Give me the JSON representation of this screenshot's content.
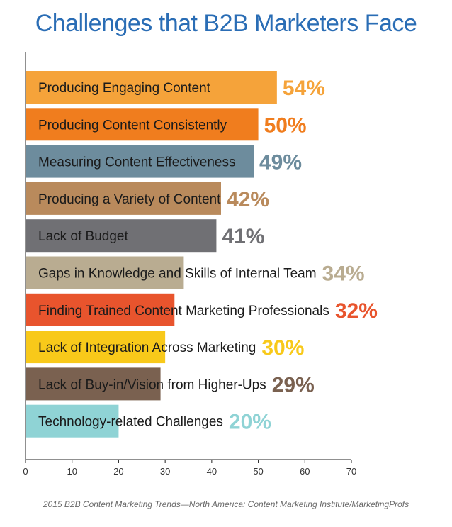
{
  "chart_data": {
    "type": "bar",
    "orientation": "horizontal",
    "title": "Challenges that B2B Marketers Face",
    "categories": [
      "Producing Engaging Content",
      "Producing Content Consistently",
      "Measuring Content Effectiveness",
      "Producing a Variety of Content",
      "Lack of Budget",
      "Gaps in Knowledge and Skills of Internal Team",
      "Finding Trained Content Marketing Professionals",
      "Lack of Integration Across Marketing",
      "Lack of Buy-in/Vision from Higher-Ups",
      "Technology-related Challenges"
    ],
    "values": [
      54,
      50,
      49,
      42,
      41,
      34,
      32,
      30,
      29,
      20
    ],
    "value_labels": [
      "54%",
      "50%",
      "49%",
      "42%",
      "41%",
      "34%",
      "32%",
      "30%",
      "29%",
      "20%"
    ],
    "colors": [
      "#f5a33a",
      "#f07d1e",
      "#6d8c9d",
      "#b98a5c",
      "#707074",
      "#b9ac91",
      "#e8542d",
      "#f8c91a",
      "#7a6150",
      "#8fd3d5"
    ],
    "xlim": [
      0,
      70
    ],
    "xticks": [
      "0",
      "10",
      "20",
      "30",
      "40",
      "50",
      "60",
      "70"
    ],
    "xtick_values": [
      0,
      10,
      20,
      30,
      40,
      50,
      60,
      70
    ],
    "source": "2015 B2B Content Marketing Trends—North America: Content Marketing Institute/MarketingProfs",
    "grid": false,
    "legend": "none"
  }
}
